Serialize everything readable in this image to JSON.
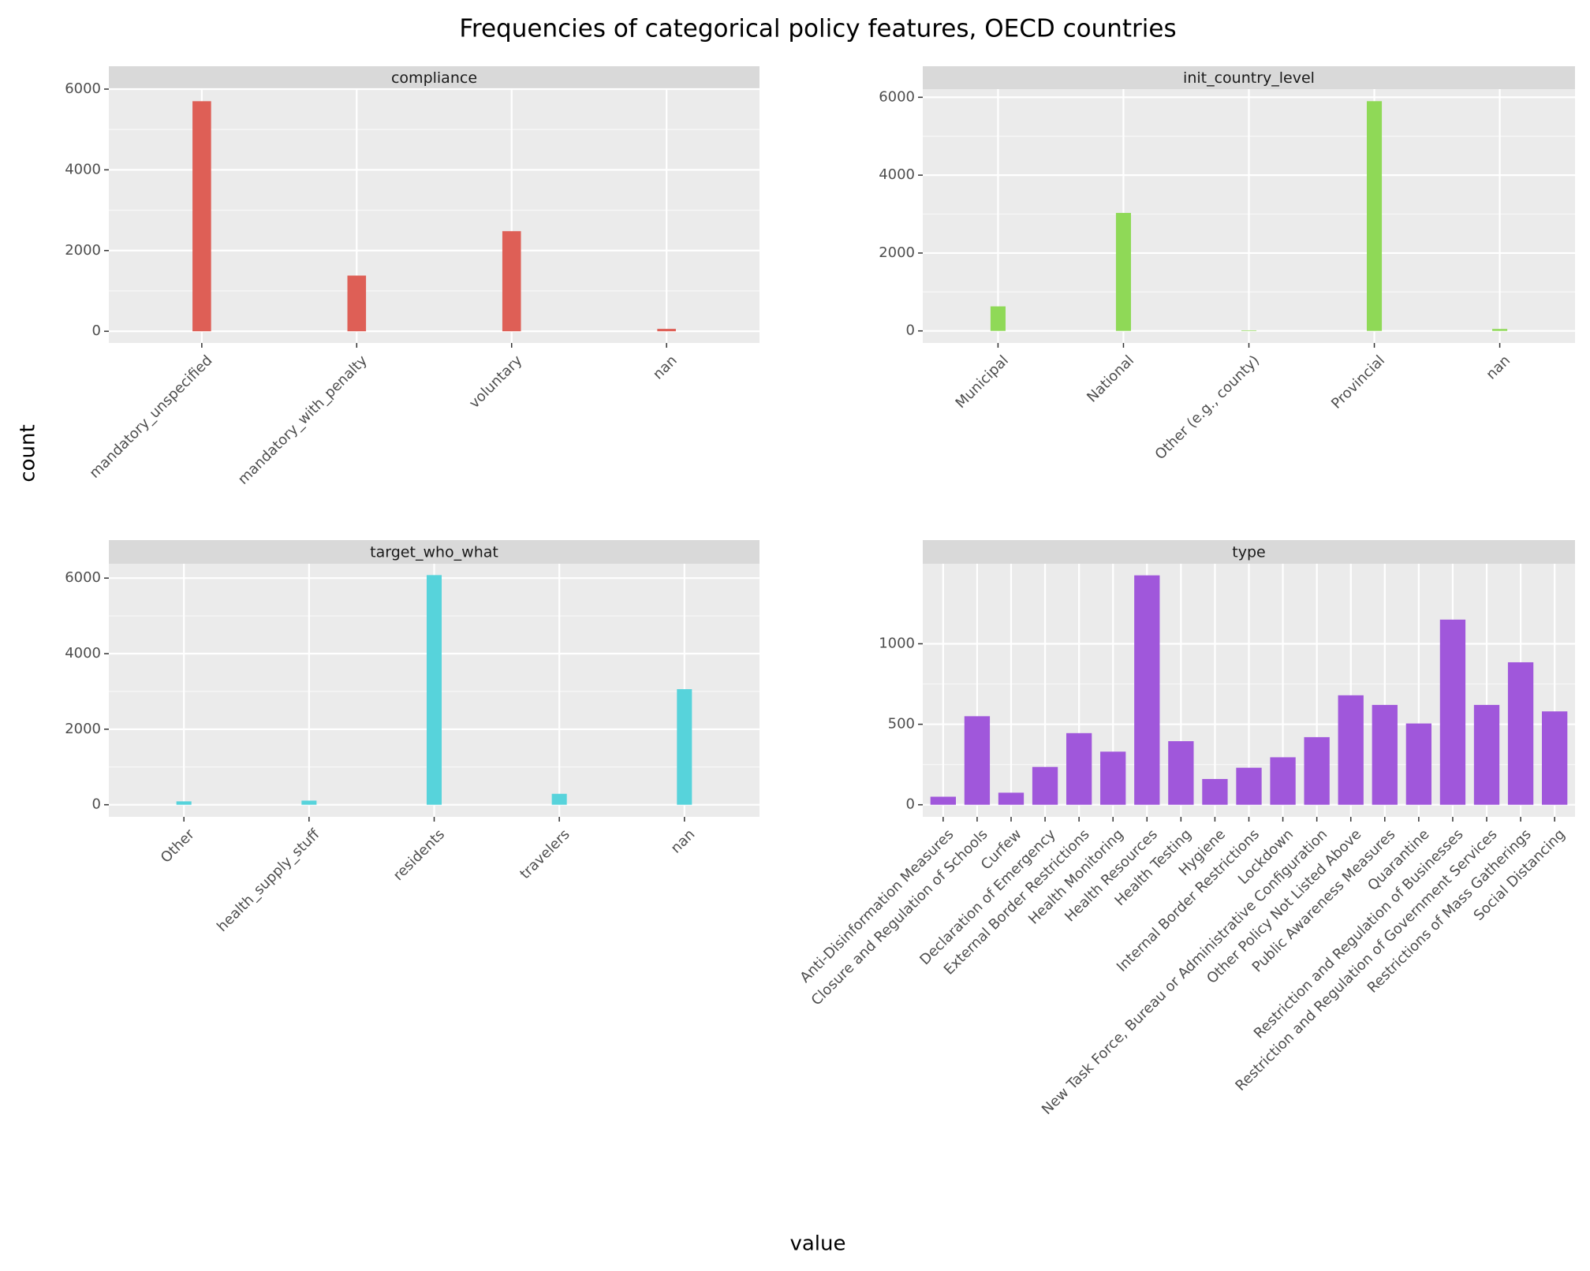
{
  "title": "Frequencies of categorical policy features, OECD countries",
  "x_label": "value",
  "y_label": "count",
  "chart_data": [
    {
      "type": "bar",
      "title": "compliance",
      "categories": [
        "mandatory_unspecified",
        "mandatory_with_penalty",
        "voluntary",
        "nan"
      ],
      "values": [
        5700,
        1380,
        2480,
        60
      ],
      "color": "#de5f56",
      "ylim": [
        -290,
        6000
      ],
      "yticks": [
        0,
        2000,
        4000,
        6000
      ],
      "grid": true
    },
    {
      "type": "bar",
      "title": "init_country_level",
      "categories": [
        "Municipal",
        "National",
        "Other (e.g., county)",
        "Provincial",
        "nan"
      ],
      "values": [
        630,
        3030,
        15,
        5900,
        50
      ],
      "color": "#8fd957",
      "ylim": [
        -310,
        6210
      ],
      "yticks": [
        0,
        2000,
        4000,
        6000
      ],
      "grid": true
    },
    {
      "type": "bar",
      "title": "target_who_what",
      "categories": [
        "Other",
        "health_supply_stuff",
        "residents",
        "travelers",
        "nan"
      ],
      "values": [
        90,
        110,
        6080,
        290,
        3060
      ],
      "color": "#57d3db",
      "ylim": [
        -320,
        6380
      ],
      "yticks": [
        0,
        2000,
        4000,
        6000
      ],
      "grid": true
    },
    {
      "type": "bar",
      "title": "type",
      "categories": [
        "Anti-Disinformation Measures",
        "Closure and Regulation of Schools",
        "Curfew",
        "Declaration of Emergency",
        "External Border Restrictions",
        "Health Monitoring",
        "Health Resources",
        "Health Testing",
        "Hygiene",
        "Internal Border Restrictions",
        "Lockdown",
        "New Task Force, Bureau or Administrative Configuration",
        "Other Policy Not Listed Above",
        "Public Awareness Measures",
        "Quarantine",
        "Restriction and Regulation of Businesses",
        "Restriction and Regulation of Government Services",
        "Restrictions of Mass Gatherings",
        "Social Distancing"
      ],
      "values": [
        50,
        550,
        75,
        235,
        445,
        330,
        1425,
        395,
        160,
        230,
        295,
        420,
        680,
        620,
        505,
        1150,
        620,
        885,
        580
      ],
      "color": "#a057db",
      "ylim": [
        -75,
        1497
      ],
      "yticks": [
        0,
        500,
        1000
      ],
      "grid": true
    }
  ]
}
